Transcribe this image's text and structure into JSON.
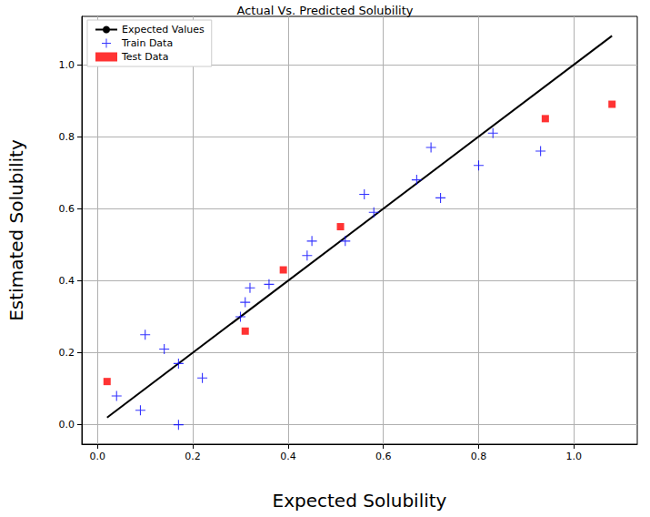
{
  "chart_data": {
    "type": "scatter",
    "title": "Actual Vs. Predicted Solubility",
    "x_label": "Expected Solubility",
    "y_label": "Estimated Solubility",
    "xlim": [
      -0.033,
      1.133
    ],
    "ylim": [
      -0.054,
      1.134
    ],
    "xticks": [
      {
        "value": 0,
        "label": "0.0"
      },
      0.2,
      0.4,
      0.6,
      0.8,
      {
        "value": 1,
        "label": "1.0"
      }
    ],
    "yticks": [
      {
        "value": 0,
        "label": "0.0"
      },
      0.2,
      0.4,
      0.6,
      0.8,
      {
        "value": 1,
        "label": "1.0"
      }
    ],
    "grid": true,
    "legend": "upper left",
    "series": [
      {
        "name": "Expected Values",
        "type": "line",
        "color": "#000000",
        "line_style": "solid",
        "x": [
          0.02,
          1.08
        ],
        "values": [
          0.02,
          1.08
        ]
      },
      {
        "name": "Train Data",
        "type": "scatter",
        "color": "#0000ff",
        "marker": "plus",
        "x": [
          0.04,
          0.09,
          0.1,
          0.14,
          0.17,
          0.17,
          0.22,
          0.3,
          0.31,
          0.32,
          0.36,
          0.44,
          0.45,
          0.52,
          0.56,
          0.58,
          0.67,
          0.7,
          0.72,
          0.8,
          0.83,
          0.93
        ],
        "values": [
          0.08,
          0.04,
          0.25,
          0.21,
          0.17,
          0.0,
          0.13,
          0.3,
          0.34,
          0.38,
          0.39,
          0.47,
          0.51,
          0.51,
          0.64,
          0.59,
          0.68,
          0.77,
          0.63,
          0.72,
          0.81,
          0.76
        ]
      },
      {
        "name": "Test Data",
        "type": "scatter",
        "color": "#ff0000",
        "marker": "square",
        "x": [
          0.02,
          0.31,
          0.39,
          0.51,
          0.94,
          1.08
        ],
        "values": [
          0.12,
          0.26,
          0.43,
          0.55,
          0.85,
          0.89
        ]
      }
    ]
  }
}
